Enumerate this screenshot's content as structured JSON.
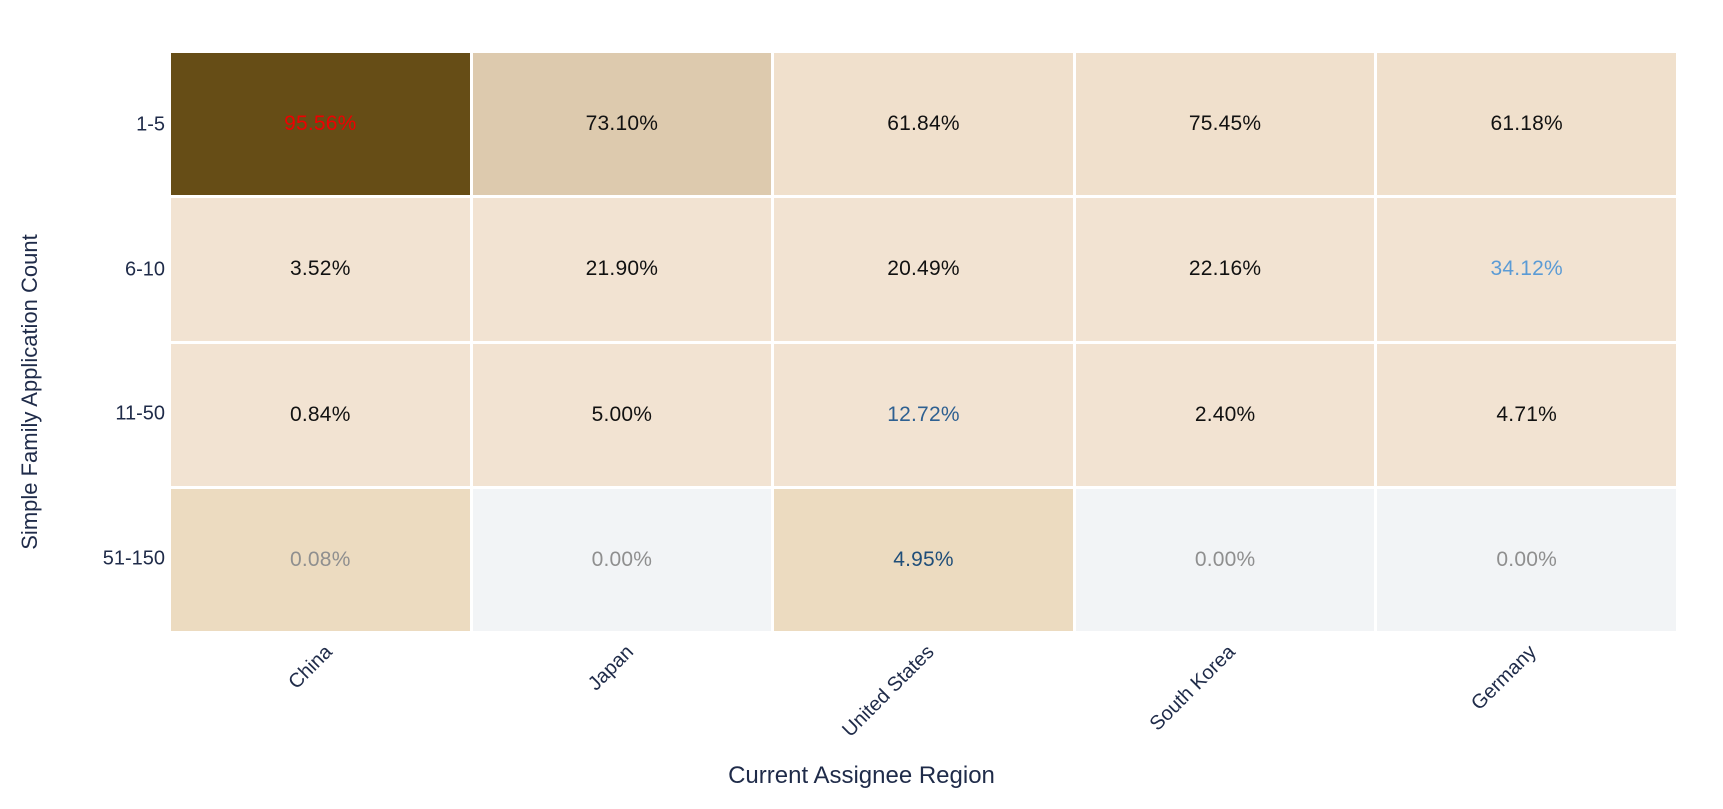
{
  "chart_data": {
    "type": "heatmap",
    "xlabel": "Current Assignee Region",
    "ylabel": "Simple Family Application Count",
    "x_categories": [
      "China",
      "Japan",
      "United States",
      "South Korea",
      "Germany"
    ],
    "y_categories": [
      "1-5",
      "6-10",
      "11-50",
      "51-150"
    ],
    "values_percent": [
      [
        95.56,
        73.1,
        61.84,
        75.45,
        61.18
      ],
      [
        3.52,
        21.9,
        20.49,
        22.16,
        34.12
      ],
      [
        0.84,
        5.0,
        12.72,
        2.4,
        4.71
      ],
      [
        0.08,
        0.0,
        4.95,
        0.0,
        0.0
      ]
    ],
    "cell_labels": [
      [
        "95.56%",
        "73.10%",
        "61.84%",
        "75.45%",
        "61.18%"
      ],
      [
        "3.52%",
        "21.90%",
        "20.49%",
        "22.16%",
        "34.12%"
      ],
      [
        "0.84%",
        "5.00%",
        "12.72%",
        "2.40%",
        "4.71%"
      ],
      [
        "0.08%",
        "0.00%",
        "4.95%",
        "0.00%",
        "0.00%"
      ]
    ],
    "cell_bg": [
      [
        "#664d16",
        "#ddcaae",
        "#f0e0cc",
        "#f0e0cc",
        "#f0e0cc"
      ],
      [
        "#f2e3d2",
        "#f2e3d2",
        "#f2e3d2",
        "#f2e3d2",
        "#f2e3d2"
      ],
      [
        "#f2e3d2",
        "#f2e3d2",
        "#f2e3d2",
        "#f2e3d2",
        "#f2e3d2"
      ],
      [
        "#ecdbc0",
        "#f2f4f6",
        "#ecdbc0",
        "#f2f4f6",
        "#f2f4f6"
      ]
    ],
    "cell_fg": [
      [
        "#ee0000",
        "#111111",
        "#111111",
        "#111111",
        "#111111"
      ],
      [
        "#111111",
        "#111111",
        "#111111",
        "#111111",
        "#5b9bd5"
      ],
      [
        "#111111",
        "#111111",
        "#2e6091",
        "#111111",
        "#111111"
      ],
      [
        "#8f8f8f",
        "#8f8f8f",
        "#1f4e79",
        "#8f8f8f",
        "#8f8f8f"
      ]
    ],
    "layout_hints": {
      "grid": "white 3px gaps between cells",
      "x_tick_rotation_deg": -45,
      "legend": "none"
    },
    "colors": {
      "axis_text": "#1f2b49",
      "highlight_max_text": "#ee0000",
      "highlight_light_blue": "#5b9bd5",
      "highlight_mid_blue": "#2e6091",
      "highlight_dark_blue": "#1f4e79",
      "zero_cell_bg": "#f2f4f6",
      "max_cell_bg": "#664d16",
      "background": "#ffffff"
    }
  }
}
